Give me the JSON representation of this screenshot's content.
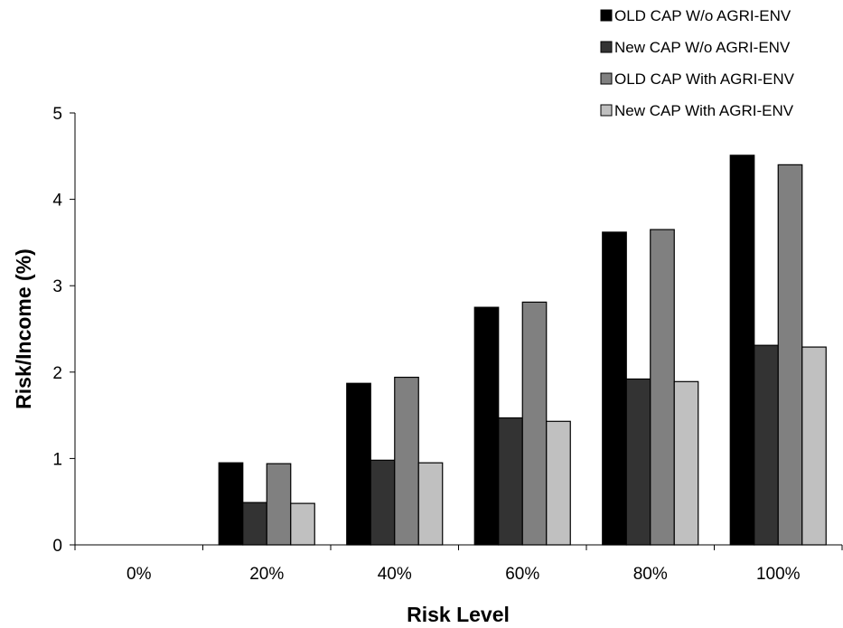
{
  "chart_data": {
    "type": "bar",
    "title": "",
    "xlabel": "Risk Level",
    "ylabel": "Risk/Income (%)",
    "categories": [
      "0%",
      "20%",
      "40%",
      "60%",
      "80%",
      "100%"
    ],
    "ylim": [
      0,
      5
    ],
    "yticks": [
      "0",
      "1",
      "2",
      "3",
      "4",
      "5"
    ],
    "grid": false,
    "legend_position": "top-right",
    "series": [
      {
        "name": "OLD CAP W/o AGRI-ENV",
        "color": "#000000",
        "values": [
          0,
          0.95,
          1.87,
          2.75,
          3.62,
          4.51
        ]
      },
      {
        "name": "New CAP W/o AGRI-ENV",
        "color": "#333333",
        "values": [
          0,
          0.49,
          0.98,
          1.47,
          1.92,
          2.31
        ]
      },
      {
        "name": "OLD CAP With AGRI-ENV",
        "color": "#808080",
        "values": [
          0,
          0.94,
          1.94,
          2.81,
          3.65,
          4.4
        ]
      },
      {
        "name": "New CAP With AGRI-ENV",
        "color": "#c0c0c0",
        "values": [
          0,
          0.48,
          0.95,
          1.43,
          1.89,
          2.29
        ]
      }
    ]
  }
}
